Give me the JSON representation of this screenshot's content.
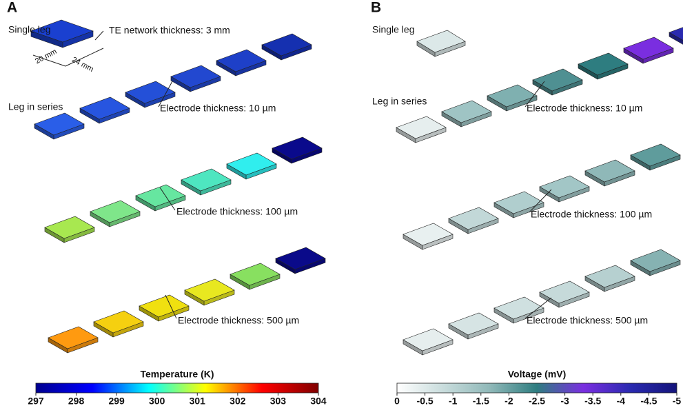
{
  "panels": [
    {
      "letter": "A",
      "single_leg": "Single leg",
      "leg_in_series": "Leg in series",
      "thickness_note": "TE network thickness: 3 mm",
      "dim_width": "20 mm",
      "dim_length": "24 mm",
      "electrode_labels": [
        "Electrode thickness: 10 µm",
        "Electrode thickness: 100 µm",
        "Electrode thickness: 500 µm"
      ],
      "colorbar": {
        "title": "Temperature (K)",
        "lim": [
          297,
          304
        ],
        "ticks": [
          297,
          298,
          299,
          300,
          301,
          302,
          303,
          304
        ],
        "colors": [
          "#00008f",
          "#0000ff",
          "#00ffff",
          "#ffff00",
          "#ff0000",
          "#800000"
        ]
      }
    },
    {
      "letter": "B",
      "single_leg": "Single leg",
      "leg_in_series": "Leg in series",
      "electrode_labels": [
        "Electrode thickness: 10 µm",
        "Electrode thickness: 100 µm",
        "Electrode thickness: 500 µm"
      ],
      "colorbar": {
        "title": "Voltage (mV)",
        "lim": [
          0,
          -5
        ],
        "ticks": [
          0,
          -0.5,
          -1,
          -1.5,
          -2,
          -2.5,
          -3,
          -3.5,
          -4,
          -4.5,
          -5
        ],
        "colors": [
          "#ffffff",
          "#c8dcdc",
          "#8fb8b8",
          "#2e7d80",
          "#7a2ee0",
          "#2a2ab0",
          "#14147a"
        ]
      }
    }
  ]
}
